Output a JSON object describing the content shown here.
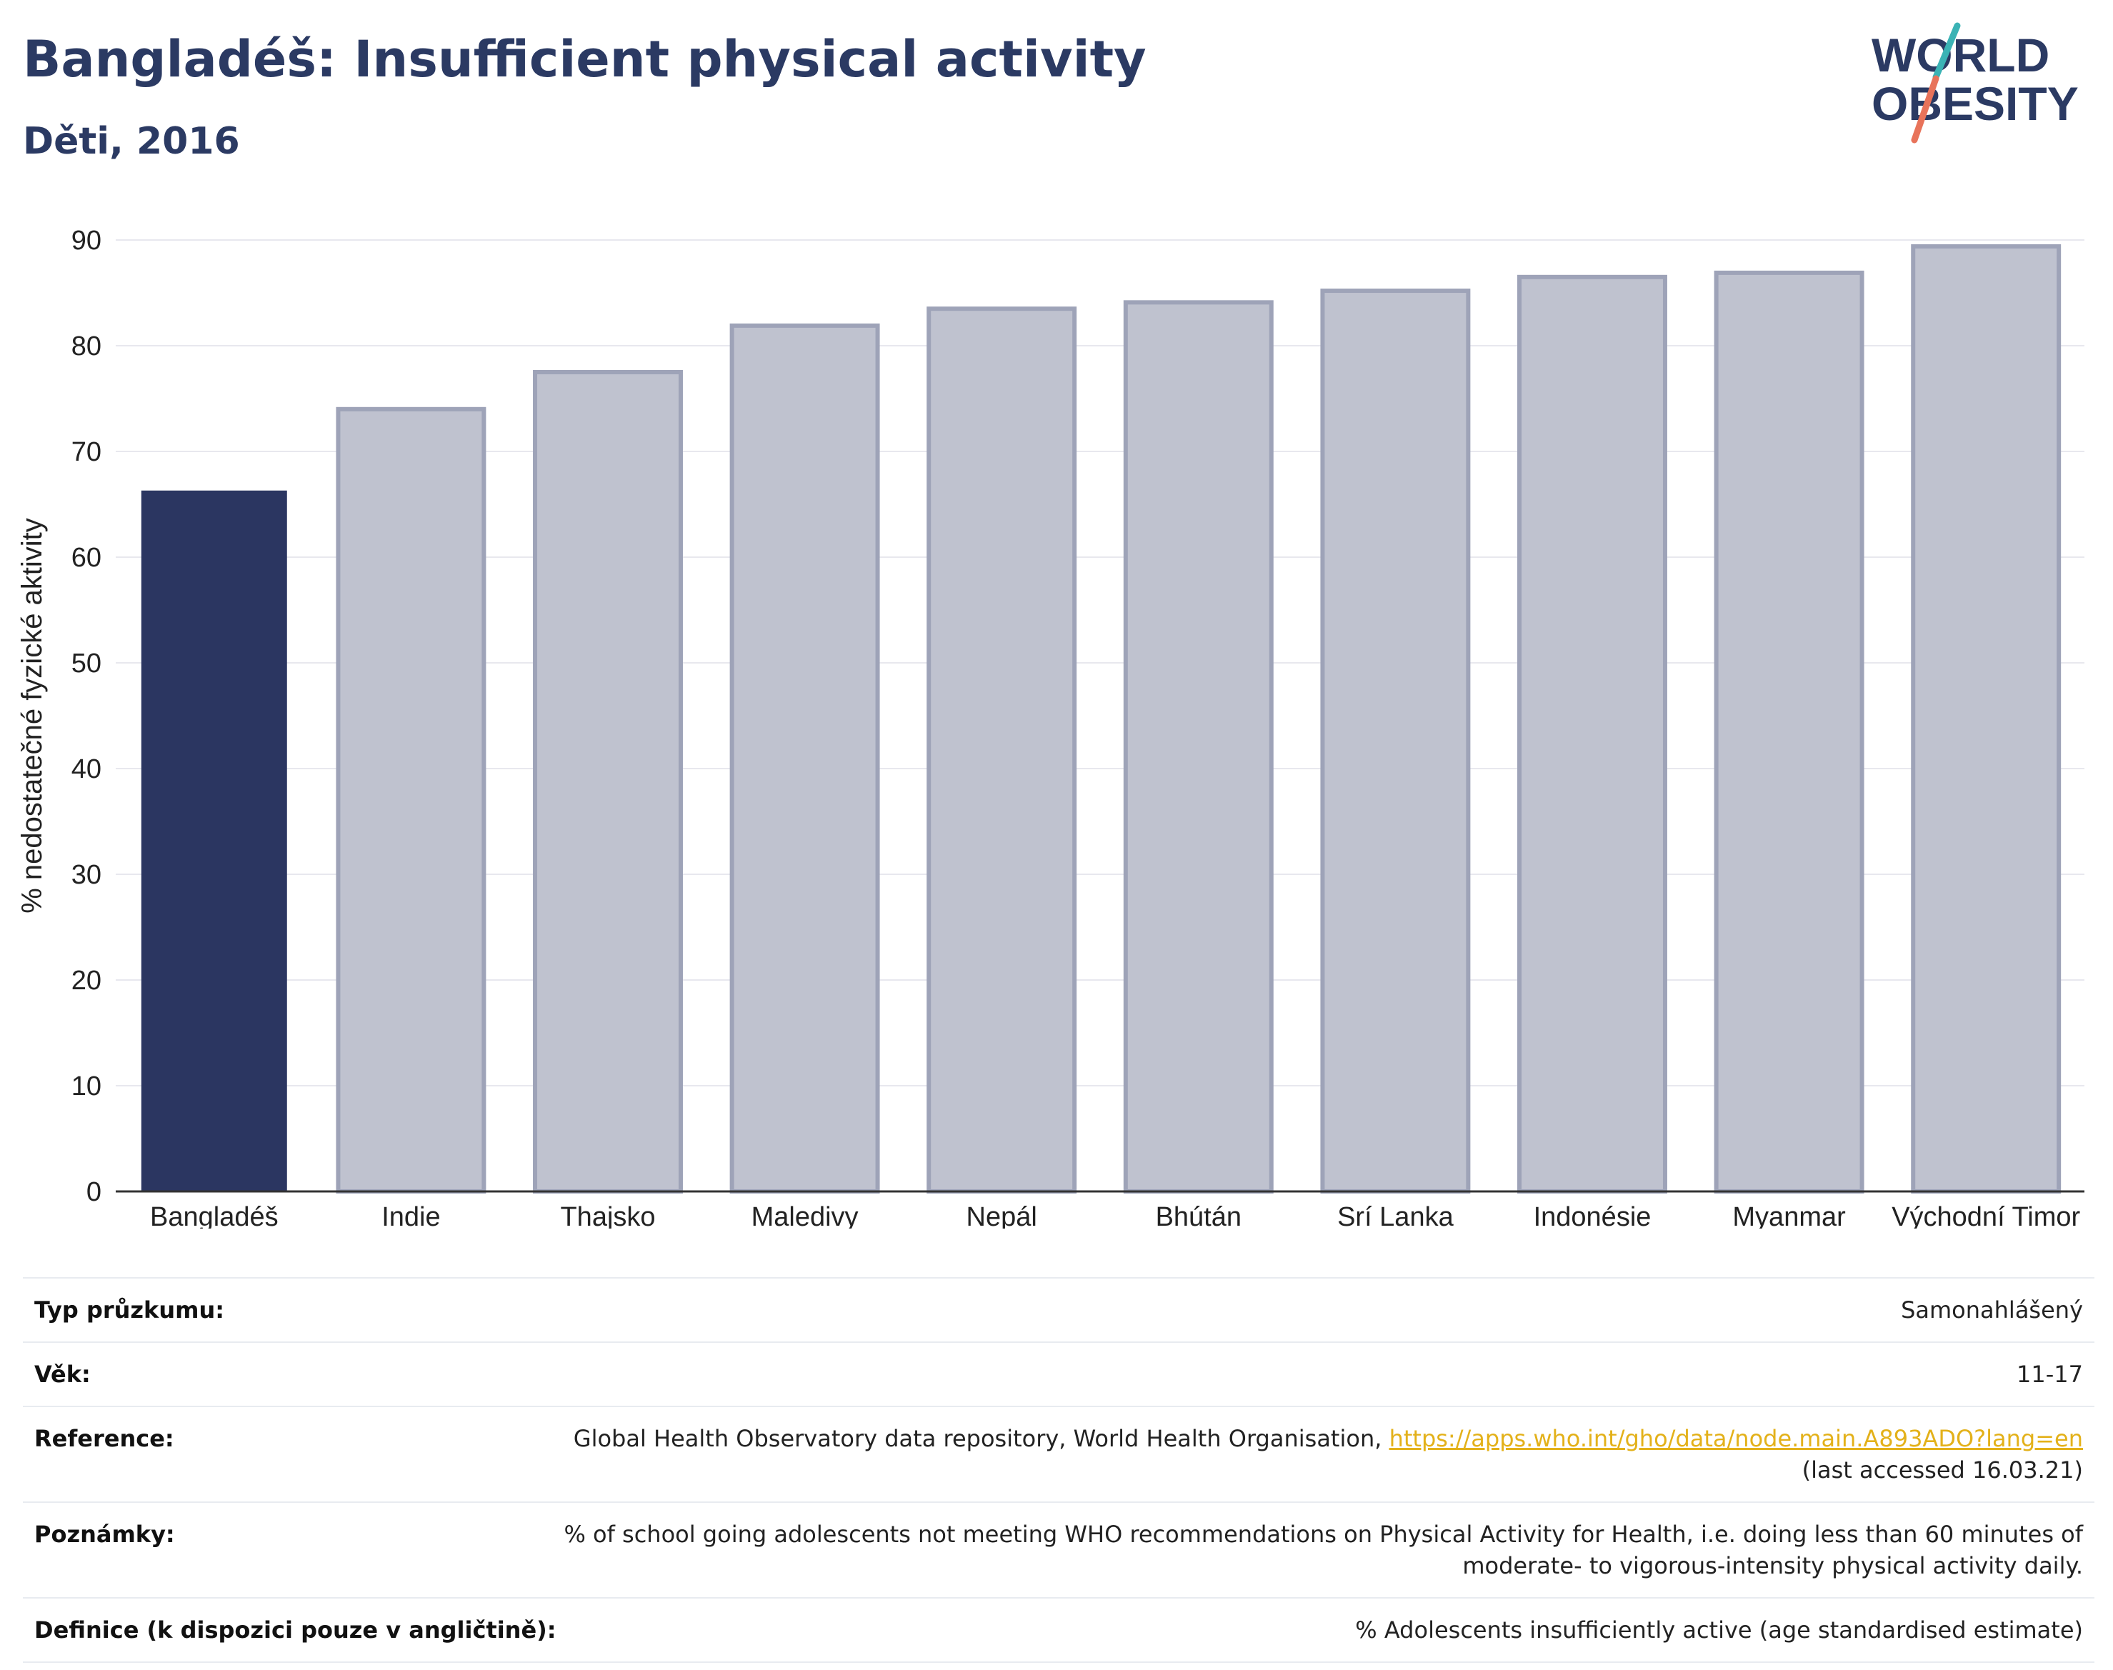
{
  "header": {
    "title": "Bangladéš: Insufficient physical activity",
    "subtitle": "Děti, 2016"
  },
  "logo": {
    "line1": "WORLD",
    "line2": "OBESITY",
    "colors": {
      "text": "#2b3a63",
      "slash_top": "#3bb3b5",
      "slash_bottom": "#e8735a"
    }
  },
  "chart_data": {
    "type": "bar",
    "title": "Bangladéš: Insufficient physical activity",
    "subtitle": "Děti, 2016",
    "xlabel": "",
    "ylabel": "% nedostatečné fyzické aktivity",
    "ylim": [
      0,
      90
    ],
    "yticks": [
      0,
      10,
      20,
      30,
      40,
      50,
      60,
      70,
      80,
      90
    ],
    "grid": true,
    "categories": [
      "Bangladéš",
      "Indie",
      "Thajsko",
      "Maledivy",
      "Nepál",
      "Bhútán",
      "Srí Lanka",
      "Indonésie",
      "Myanmar",
      "Východní Timor"
    ],
    "values": [
      66.3,
      74.0,
      77.5,
      81.9,
      83.5,
      84.1,
      85.2,
      86.5,
      86.9,
      89.4
    ],
    "highlight_index": 0,
    "colors": {
      "highlight": "#2b3661",
      "other_fill": "#bfc2cf",
      "other_stroke": "#9ea3b8",
      "grid": "#e8e8ee",
      "axis": "#333333"
    }
  },
  "table": [
    {
      "label": "Typ průzkumu:",
      "value": "Samonahlášený"
    },
    {
      "label": "Věk:",
      "value": "11-17"
    },
    {
      "label": "Reference:",
      "value": "Global Health Observatory data repository, World Health Organisation, ",
      "link": "https://apps.who.int/gho/data/node.main.A893ADO?lang=en",
      "value2": "(last accessed 16.03.21)"
    },
    {
      "label": "Poznámky:",
      "value": "% of school going adolescents not meeting WHO recommendations on Physical Activity for Health, i.e. doing less than 60 minutes of moderate- to vigorous-intensity physical activity daily."
    },
    {
      "label": "Definice (k dispozici pouze v angličtině):",
      "value": "% Adolescents insufficiently active (age standardised estimate)"
    }
  ]
}
